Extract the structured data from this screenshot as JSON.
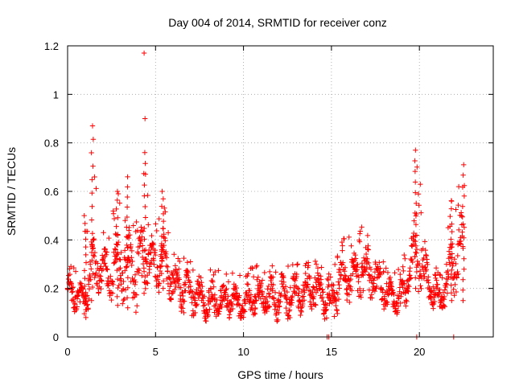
{
  "chart_data": {
    "type": "scatter",
    "title": "Day 004 of 2014, SRMTID for receiver conz",
    "xlabel": "GPS time / hours",
    "ylabel": "SRMTID / TECUs",
    "xlim": [
      0,
      24.2
    ],
    "ylim": [
      0,
      1.2
    ],
    "xticks": [
      0,
      5,
      10,
      15,
      20
    ],
    "xtick_labels": [
      "0",
      "5",
      "10",
      "15",
      "20"
    ],
    "yticks": [
      0,
      0.2,
      0.4,
      0.6,
      0.8,
      1.0,
      1.2
    ],
    "ytick_labels": [
      "0",
      "0.2",
      "0.4",
      "0.6",
      "0.8",
      "1",
      "1.2"
    ],
    "grid": true,
    "marker": "+",
    "series": [
      {
        "name": "SRMTID",
        "color": "#ff0000",
        "note": "dense scatter; envelope values digitized, points generated deterministically",
        "envelope": [
          {
            "x": 0.0,
            "lo": 0.1,
            "hi": 0.28,
            "spike": 0.3
          },
          {
            "x": 0.5,
            "lo": 0.09,
            "hi": 0.26,
            "spike": 0.28
          },
          {
            "x": 1.0,
            "lo": 0.08,
            "hi": 0.22,
            "spike": 0.5
          },
          {
            "x": 1.4,
            "lo": 0.15,
            "hi": 0.45,
            "spike": 0.87
          },
          {
            "x": 1.8,
            "lo": 0.18,
            "hi": 0.4,
            "spike": 0.45
          },
          {
            "x": 2.3,
            "lo": 0.15,
            "hi": 0.38,
            "spike": 0.48
          },
          {
            "x": 2.8,
            "lo": 0.13,
            "hi": 0.45,
            "spike": 0.6
          },
          {
            "x": 3.4,
            "lo": 0.12,
            "hi": 0.48,
            "spike": 0.66
          },
          {
            "x": 3.9,
            "lo": 0.1,
            "hi": 0.4,
            "spike": 0.5
          },
          {
            "x": 4.4,
            "lo": 0.18,
            "hi": 0.5,
            "spike": 0.76
          },
          {
            "x": 4.9,
            "lo": 0.15,
            "hi": 0.4,
            "spike": 0.45
          },
          {
            "x": 5.4,
            "lo": 0.2,
            "hi": 0.48,
            "spike": 0.6
          },
          {
            "x": 6.0,
            "lo": 0.12,
            "hi": 0.32,
            "spike": 0.35
          },
          {
            "x": 7.0,
            "lo": 0.08,
            "hi": 0.28,
            "spike": 0.32
          },
          {
            "x": 8.0,
            "lo": 0.06,
            "hi": 0.24,
            "spike": 0.32
          },
          {
            "x": 9.0,
            "lo": 0.07,
            "hi": 0.22,
            "spike": 0.26
          },
          {
            "x": 10.0,
            "lo": 0.07,
            "hi": 0.22,
            "spike": 0.28
          },
          {
            "x": 11.0,
            "lo": 0.08,
            "hi": 0.26,
            "spike": 0.3
          },
          {
            "x": 12.0,
            "lo": 0.06,
            "hi": 0.25,
            "spike": 0.3
          },
          {
            "x": 13.0,
            "lo": 0.08,
            "hi": 0.27,
            "spike": 0.3
          },
          {
            "x": 14.0,
            "lo": 0.1,
            "hi": 0.3,
            "spike": 0.32
          },
          {
            "x": 15.0,
            "lo": 0.05,
            "hi": 0.22,
            "spike": 0.25
          },
          {
            "x": 15.6,
            "lo": 0.12,
            "hi": 0.35,
            "spike": 0.4
          },
          {
            "x": 16.4,
            "lo": 0.15,
            "hi": 0.38,
            "spike": 0.46
          },
          {
            "x": 17.3,
            "lo": 0.15,
            "hi": 0.38,
            "spike": 0.45
          },
          {
            "x": 18.0,
            "lo": 0.1,
            "hi": 0.26,
            "spike": 0.3
          },
          {
            "x": 19.0,
            "lo": 0.08,
            "hi": 0.24,
            "spike": 0.3
          },
          {
            "x": 19.8,
            "lo": 0.2,
            "hi": 0.55,
            "spike": 0.77
          },
          {
            "x": 20.5,
            "lo": 0.12,
            "hi": 0.32,
            "spike": 0.38
          },
          {
            "x": 21.2,
            "lo": 0.08,
            "hi": 0.2,
            "spike": 0.26
          },
          {
            "x": 21.8,
            "lo": 0.15,
            "hi": 0.45,
            "spike": 0.56
          },
          {
            "x": 22.5,
            "lo": 0.15,
            "hi": 0.55,
            "spike": 0.71
          }
        ],
        "outliers": [
          {
            "x": 4.35,
            "y": 1.17
          },
          {
            "x": 4.4,
            "y": 0.9
          },
          {
            "x": 14.75,
            "y": 0.0
          },
          {
            "x": 14.85,
            "y": 0.0
          },
          {
            "x": 19.85,
            "y": 0.0
          },
          {
            "x": 21.95,
            "y": 0.0
          }
        ]
      }
    ]
  }
}
